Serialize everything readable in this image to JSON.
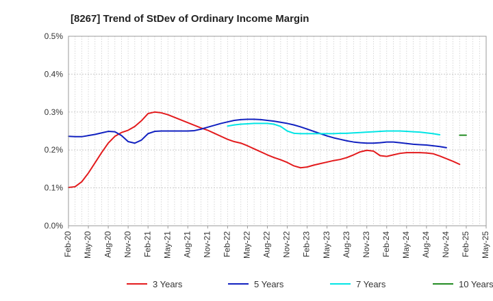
{
  "chart_data": {
    "type": "line",
    "title": "[8267]  Trend of StDev of Ordinary Income Margin",
    "xlabel": "",
    "ylabel": "",
    "ylim": [
      0,
      0.5
    ],
    "y_ticks": [
      "0.0%",
      "0.1%",
      "0.2%",
      "0.3%",
      "0.4%",
      "0.5%"
    ],
    "x_tick_labels": [
      "Feb-20",
      "May-20",
      "Aug-20",
      "Nov-20",
      "Feb-21",
      "May-21",
      "Aug-21",
      "Nov-21",
      "Feb-22",
      "May-22",
      "Aug-22",
      "Nov-22",
      "Feb-23",
      "May-23",
      "Aug-23",
      "Nov-23",
      "Feb-24",
      "May-24",
      "Aug-24",
      "Nov-24",
      "Feb-25",
      "May-25"
    ],
    "grid": true,
    "legend_position": "bottom",
    "series": [
      {
        "name": "3 Years",
        "color": "#e31a1c",
        "start": "Feb-20",
        "values": [
          0.101,
          0.103,
          0.116,
          0.139,
          0.166,
          0.193,
          0.218,
          0.236,
          0.246,
          0.252,
          0.262,
          0.277,
          0.296,
          0.3,
          0.298,
          0.293,
          0.286,
          0.279,
          0.272,
          0.265,
          0.258,
          0.252,
          0.244,
          0.236,
          0.228,
          0.222,
          0.218,
          0.211,
          0.203,
          0.195,
          0.187,
          0.18,
          0.174,
          0.167,
          0.158,
          0.153,
          0.155,
          0.16,
          0.164,
          0.168,
          0.172,
          0.175,
          0.18,
          0.187,
          0.195,
          0.199,
          0.197,
          0.185,
          0.183,
          0.187,
          0.191,
          0.193,
          0.193,
          0.193,
          0.192,
          0.19,
          0.184,
          0.177,
          0.17,
          0.162
        ]
      },
      {
        "name": "5 Years",
        "color": "#1020c0",
        "start": "Feb-20",
        "values": [
          0.236,
          0.235,
          0.235,
          0.238,
          0.241,
          0.245,
          0.249,
          0.248,
          0.238,
          0.222,
          0.218,
          0.226,
          0.243,
          0.249,
          0.25,
          0.25,
          0.25,
          0.25,
          0.25,
          0.251,
          0.255,
          0.26,
          0.265,
          0.27,
          0.274,
          0.278,
          0.28,
          0.281,
          0.281,
          0.28,
          0.278,
          0.276,
          0.273,
          0.27,
          0.266,
          0.261,
          0.255,
          0.249,
          0.243,
          0.237,
          0.232,
          0.228,
          0.224,
          0.221,
          0.219,
          0.218,
          0.218,
          0.219,
          0.221,
          0.221,
          0.219,
          0.217,
          0.215,
          0.214,
          0.213,
          0.211,
          0.209,
          0.206
        ]
      },
      {
        "name": "7 Years",
        "color": "#00e5e5",
        "start": "Feb-22",
        "values": [
          0.263,
          0.266,
          0.268,
          0.269,
          0.27,
          0.27,
          0.27,
          0.268,
          0.262,
          0.25,
          0.244,
          0.243,
          0.243,
          0.243,
          0.243,
          0.243,
          0.243,
          0.244,
          0.244,
          0.245,
          0.246,
          0.247,
          0.248,
          0.249,
          0.25,
          0.25,
          0.25,
          0.249,
          0.248,
          0.247,
          0.245,
          0.243,
          0.24
        ]
      },
      {
        "name": "10 Years",
        "color": "#228b22",
        "start": "Jan-25",
        "values": [
          0.239,
          0.239
        ]
      }
    ]
  }
}
